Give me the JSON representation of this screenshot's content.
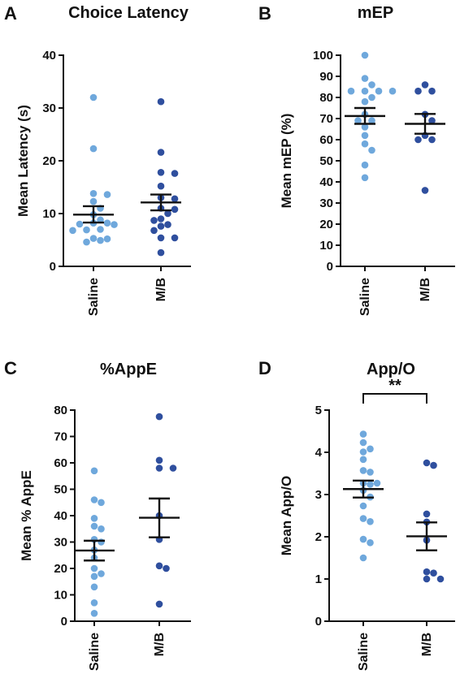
{
  "colors": {
    "saline": "#6fa8dc",
    "mb": "#2f4f9e",
    "axis": "#111111"
  },
  "chart_data": [
    {
      "type": "scatter",
      "panel": "A",
      "title": "Choice Latency",
      "ylabel": "Mean Latency (s)",
      "ylim": [
        0,
        40
      ],
      "yticks": [
        0,
        10,
        20,
        30,
        40
      ],
      "categories": [
        "Saline",
        "M/B"
      ],
      "series": [
        {
          "values": [
            32.0,
            22.3,
            13.8,
            13.6,
            12.3,
            11.0,
            9.8,
            8.8,
            8.2,
            8.2,
            8.0,
            7.9,
            7.0,
            6.9,
            6.8,
            5.3,
            5.2,
            4.9,
            4.6
          ],
          "mean": 9.8,
          "sem_low": 8.3,
          "sem_high": 11.4
        },
        {
          "values": [
            31.2,
            21.6,
            17.8,
            17.6,
            15.2,
            13.0,
            12.8,
            11.0,
            10.8,
            10.0,
            9.0,
            8.7,
            7.9,
            7.6,
            6.8,
            5.4,
            5.4,
            2.6
          ],
          "mean": 12.1,
          "sem_low": 10.6,
          "sem_high": 13.6
        }
      ],
      "significance": null
    },
    {
      "type": "scatter",
      "panel": "B",
      "title": "mEP",
      "ylabel": "Mean mEP (%)",
      "ylim": [
        0,
        100
      ],
      "yticks": [
        0,
        10,
        20,
        30,
        40,
        50,
        60,
        70,
        80,
        90,
        100
      ],
      "categories": [
        "Saline",
        "M/B"
      ],
      "series": [
        {
          "values": [
            100,
            89,
            86,
            83,
            83,
            83,
            83,
            80,
            78,
            72,
            69,
            69,
            66,
            62,
            58,
            55,
            48,
            42
          ],
          "mean": 71.2,
          "sem_low": 67.5,
          "sem_high": 75.0
        },
        {
          "values": [
            86,
            83,
            83,
            72,
            69,
            62,
            60,
            60,
            36
          ],
          "mean": 67.5,
          "sem_low": 62.8,
          "sem_high": 72.2
        }
      ],
      "significance": null
    },
    {
      "type": "scatter",
      "panel": "C",
      "title": "%AppE",
      "ylabel": "Mean % AppE",
      "ylim": [
        0,
        80
      ],
      "yticks": [
        0,
        10,
        20,
        30,
        40,
        50,
        60,
        70,
        80
      ],
      "categories": [
        "Saline",
        "M/B"
      ],
      "series": [
        {
          "values": [
            57,
            46,
            45,
            39,
            36,
            35,
            31,
            30,
            27,
            24,
            20,
            18,
            17,
            13,
            7,
            3
          ],
          "mean": 26.8,
          "sem_low": 23.0,
          "sem_high": 30.5
        },
        {
          "values": [
            77.5,
            61,
            58,
            58,
            40,
            31,
            21,
            20,
            6.5
          ],
          "mean": 39.2,
          "sem_low": 31.8,
          "sem_high": 46.5
        }
      ],
      "significance": null
    },
    {
      "type": "scatter",
      "panel": "D",
      "title": "App/O",
      "ylabel": "Mean App/O",
      "ylim": [
        0,
        5
      ],
      "yticks": [
        0,
        1,
        2,
        3,
        4,
        5
      ],
      "categories": [
        "Saline",
        "M/B"
      ],
      "series": [
        {
          "values": [
            4.43,
            4.23,
            4.08,
            4.01,
            3.83,
            3.57,
            3.53,
            3.27,
            3.27,
            3.24,
            3.1,
            2.94,
            2.73,
            2.43,
            2.36,
            1.94,
            1.86,
            1.5
          ],
          "mean": 3.13,
          "sem_low": 2.93,
          "sem_high": 3.33
        },
        {
          "values": [
            3.75,
            3.69,
            2.54,
            2.35,
            1.92,
            1.17,
            1.14,
            1.0,
            1.0
          ],
          "mean": 2.01,
          "sem_low": 1.68,
          "sem_high": 2.34
        }
      ],
      "significance": "**"
    }
  ]
}
